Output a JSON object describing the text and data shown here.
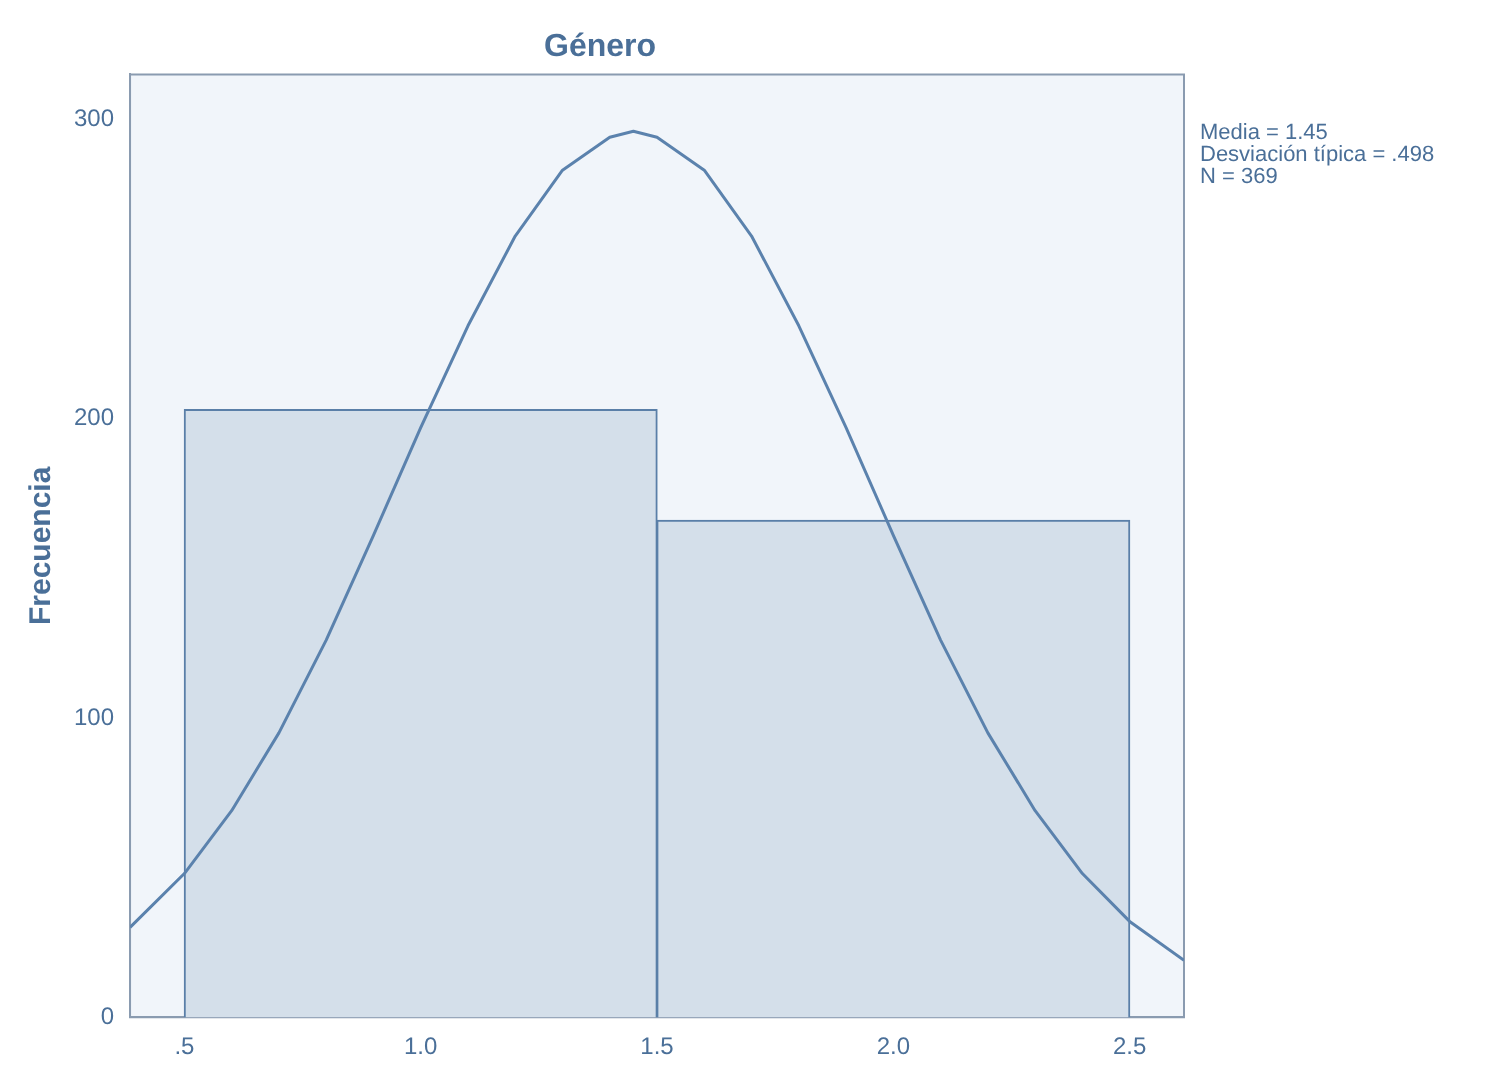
{
  "chart_data": {
    "type": "histogram",
    "title": "Género",
    "ylabel": "Frecuencia",
    "bins": [
      0.5,
      1.5,
      2.5
    ],
    "values": [
      203,
      166
    ],
    "color": "#d4dfea",
    "series": [
      {
        "type": "line",
        "color": "#5b82ad",
        "x": [
          0.385,
          0.5,
          0.6,
          0.7,
          0.8,
          0.9,
          1.0,
          1.1,
          1.2,
          1.3,
          1.4,
          1.45,
          1.5,
          1.6,
          1.7,
          1.8,
          1.9,
          2.0,
          2.1,
          2.2,
          2.3,
          2.4,
          2.5,
          2.615
        ],
        "values": [
          30,
          48,
          69,
          95,
          126,
          161,
          197,
          231,
          261,
          283,
          294,
          296,
          294,
          283,
          261,
          231,
          197,
          161,
          126,
          95,
          69,
          48,
          32,
          19
        ]
      }
    ],
    "xlim": [
      0.385,
      2.615
    ],
    "xticks": [
      {
        "value": 0.5,
        "label": ".5"
      },
      {
        "value": 1.0,
        "label": "1.0"
      },
      {
        "value": 1.5,
        "label": "1.5"
      },
      {
        "value": 2.0,
        "label": "2.0"
      },
      {
        "value": 2.5,
        "label": "2.5"
      }
    ],
    "ylim": [
      0,
      315
    ],
    "yticks": [
      0,
      100,
      200,
      300
    ],
    "annotations": [
      "Media = 1.45",
      "Desviación típica = .498",
      "N = 369"
    ],
    "grid": false,
    "legend": false,
    "marker": "none"
  }
}
